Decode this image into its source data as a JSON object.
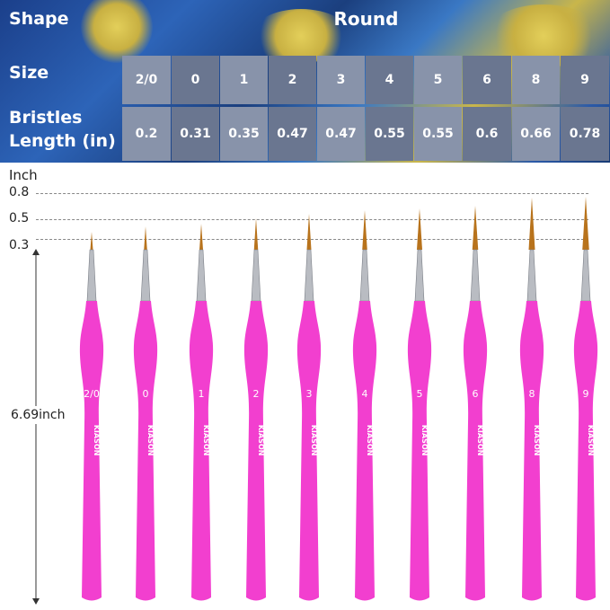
{
  "table": {
    "shape_label": "Shape",
    "shape_value": "Round",
    "size_label": "Size",
    "bristles_label_line1": "Bristles",
    "bristles_label_line2": "Length (in)",
    "sizes": [
      "2/0",
      "0",
      "1",
      "2",
      "3",
      "4",
      "5",
      "6",
      "8",
      "9"
    ],
    "lengths": [
      "0.2",
      "0.31",
      "0.35",
      "0.47",
      "0.47",
      "0.55",
      "0.55",
      "0.6",
      "0.66",
      "0.78"
    ]
  },
  "scale": {
    "unit": "Inch",
    "ticks": [
      "0.8",
      "0.5",
      "0.3"
    ],
    "handle_length": "6.69inch"
  },
  "brushes": {
    "brand": "KIASON",
    "handle_color": "#f23fcf",
    "bristle_color": "#b8731c"
  }
}
